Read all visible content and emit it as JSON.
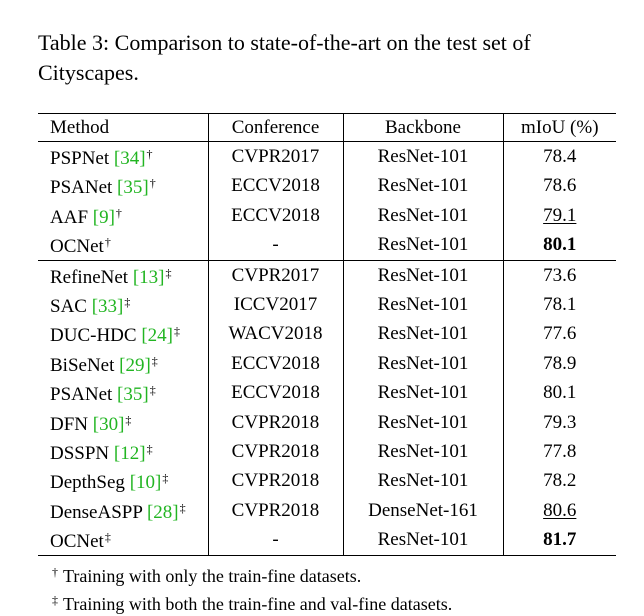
{
  "caption": "Table 3: Comparison to state-of-the-art on the test set of Cityscapes.",
  "table": {
    "headers": [
      "Method",
      "Conference",
      "Backbone",
      "mIoU (%)"
    ],
    "groups": [
      [
        {
          "name": "PSPNet ",
          "ref": "[34]",
          "mark": "†",
          "conference": "CVPR2017",
          "backbone": "ResNet-101",
          "miou": "78.4",
          "style": ""
        },
        {
          "name": "PSANet ",
          "ref": "[35]",
          "mark": "†",
          "conference": "ECCV2018",
          "backbone": "ResNet-101",
          "miou": "78.6",
          "style": ""
        },
        {
          "name": "AAF ",
          "ref": "[9]",
          "mark": "†",
          "conference": "ECCV2018",
          "backbone": "ResNet-101",
          "miou": "79.1",
          "style": "underline"
        },
        {
          "name": "OCNet",
          "ref": "",
          "mark": "†",
          "conference": "-",
          "backbone": "ResNet-101",
          "miou": "80.1",
          "style": "bold"
        }
      ],
      [
        {
          "name": "RefineNet ",
          "ref": "[13]",
          "mark": "‡",
          "conference": "CVPR2017",
          "backbone": "ResNet-101",
          "miou": "73.6",
          "style": ""
        },
        {
          "name": "SAC ",
          "ref": "[33]",
          "mark": "‡",
          "conference": "ICCV2017",
          "backbone": "ResNet-101",
          "miou": "78.1",
          "style": ""
        },
        {
          "name": "DUC-HDC ",
          "ref": "[24]",
          "mark": "‡",
          "conference": "WACV2018",
          "backbone": "ResNet-101",
          "miou": "77.6",
          "style": ""
        },
        {
          "name": "BiSeNet ",
          "ref": "[29]",
          "mark": "‡",
          "conference": "ECCV2018",
          "backbone": "ResNet-101",
          "miou": "78.9",
          "style": ""
        },
        {
          "name": "PSANet ",
          "ref": "[35]",
          "mark": "‡",
          "conference": "ECCV2018",
          "backbone": "ResNet-101",
          "miou": "80.1",
          "style": ""
        },
        {
          "name": "DFN ",
          "ref": "[30]",
          "mark": "‡",
          "conference": "CVPR2018",
          "backbone": "ResNet-101",
          "miou": "79.3",
          "style": ""
        },
        {
          "name": "DSSPN ",
          "ref": "[12]",
          "mark": "‡",
          "conference": "CVPR2018",
          "backbone": "ResNet-101",
          "miou": "77.8",
          "style": ""
        },
        {
          "name": "DepthSeg ",
          "ref": "[10]",
          "mark": "‡",
          "conference": "CVPR2018",
          "backbone": "ResNet-101",
          "miou": "78.2",
          "style": ""
        },
        {
          "name": "DenseASPP ",
          "ref": "[28]",
          "mark": "‡",
          "conference": "CVPR2018",
          "backbone": "DenseNet-161",
          "miou": "80.6",
          "style": "underline"
        },
        {
          "name": "OCNet",
          "ref": "",
          "mark": "‡",
          "conference": "-",
          "backbone": "ResNet-101",
          "miou": "81.7",
          "style": "bold"
        }
      ]
    ]
  },
  "footnotes": [
    {
      "symbol": "†",
      "text": "Training with only the train-fine datasets."
    },
    {
      "symbol": "‡",
      "text": "Training with both the train-fine and val-fine datasets."
    }
  ],
  "colors": {
    "reference_link": "#22b522",
    "text": "#000000"
  }
}
